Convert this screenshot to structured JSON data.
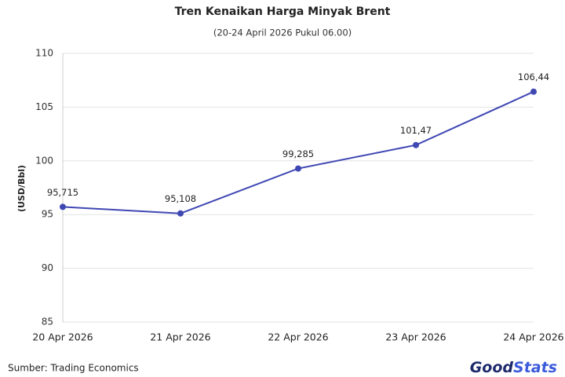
{
  "chart_data": {
    "type": "line",
    "title": "Tren Kenaikan Harga Minyak Brent",
    "subtitle": "(20-24 April 2026 Pukul 06.00)",
    "y_label": "(USD/Bbl)",
    "categories": [
      "20 Apr 2026",
      "21 Apr 2026",
      "22 Apr 2026",
      "23 Apr 2026",
      "24 Apr 2026"
    ],
    "series": [
      {
        "name": "Brent",
        "color": "#3f47b3",
        "values": [
          95.715,
          95.108,
          99.285,
          101.47,
          106.44
        ],
        "value_labels": [
          "95,715",
          "95,108",
          "99,285",
          "101,47",
          "106,44"
        ]
      }
    ],
    "ylim": [
      85,
      110
    ],
    "yticks": [
      85,
      90,
      95,
      100,
      105,
      110
    ],
    "grid": true
  },
  "footer": {
    "source": "Sumber: Trading Economics",
    "logo": [
      "Good",
      "Stats"
    ]
  }
}
